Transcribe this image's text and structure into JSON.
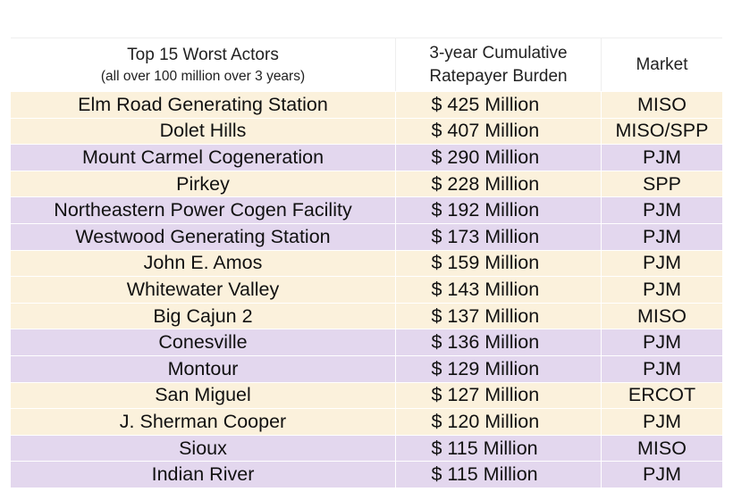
{
  "table": {
    "header": {
      "col1": {
        "title": "Top 15 Worst Actors",
        "subtitle": "(all over 100 million over 3 years)"
      },
      "col2": {
        "line1": "3-year Cumulative",
        "line2": "Ratepayer Burden"
      },
      "col3": "Market"
    },
    "rows": [
      [
        "Elm Road Generating Station",
        "$ 425 Million",
        "MISO"
      ],
      [
        "Dolet Hills",
        "$ 407 Million",
        "MISO/SPP"
      ],
      [
        "Mount Carmel Cogeneration",
        "$ 290 Million",
        "PJM"
      ],
      [
        "Pirkey",
        "$ 228 Million",
        "SPP"
      ],
      [
        "Northeastern Power Cogen Facility",
        "$ 192 Million",
        "PJM"
      ],
      [
        "Westwood Generating Station",
        "$ 173 Million",
        "PJM"
      ],
      [
        "John E. Amos",
        "$ 159 Million",
        "PJM"
      ],
      [
        "Whitewater Valley",
        "$ 143 Million",
        "PJM"
      ],
      [
        "Big Cajun 2",
        "$ 137 Million",
        "MISO"
      ],
      [
        "Conesville",
        "$ 136 Million",
        "PJM"
      ],
      [
        "Montour",
        "$ 129 Million",
        "PJM"
      ],
      [
        "San Miguel",
        "$ 127 Million",
        "ERCOT"
      ],
      [
        "J. Sherman Cooper",
        "$ 120 Million",
        "PJM"
      ],
      [
        "Sioux",
        "$ 115 Million",
        "MISO"
      ],
      [
        "Indian River",
        "$ 115 Million",
        "PJM"
      ]
    ],
    "row_colors": [
      "#fbf1dc",
      "#fbf1dc",
      "#e3d7ee",
      "#fbf1dc",
      "#e3d7ee",
      "#e3d7ee",
      "#fbf1dc",
      "#fbf1dc",
      "#fbf1dc",
      "#e3d7ee",
      "#e3d7ee",
      "#fbf1dc",
      "#fbf1dc",
      "#e3d7ee",
      "#e3d7ee"
    ]
  }
}
